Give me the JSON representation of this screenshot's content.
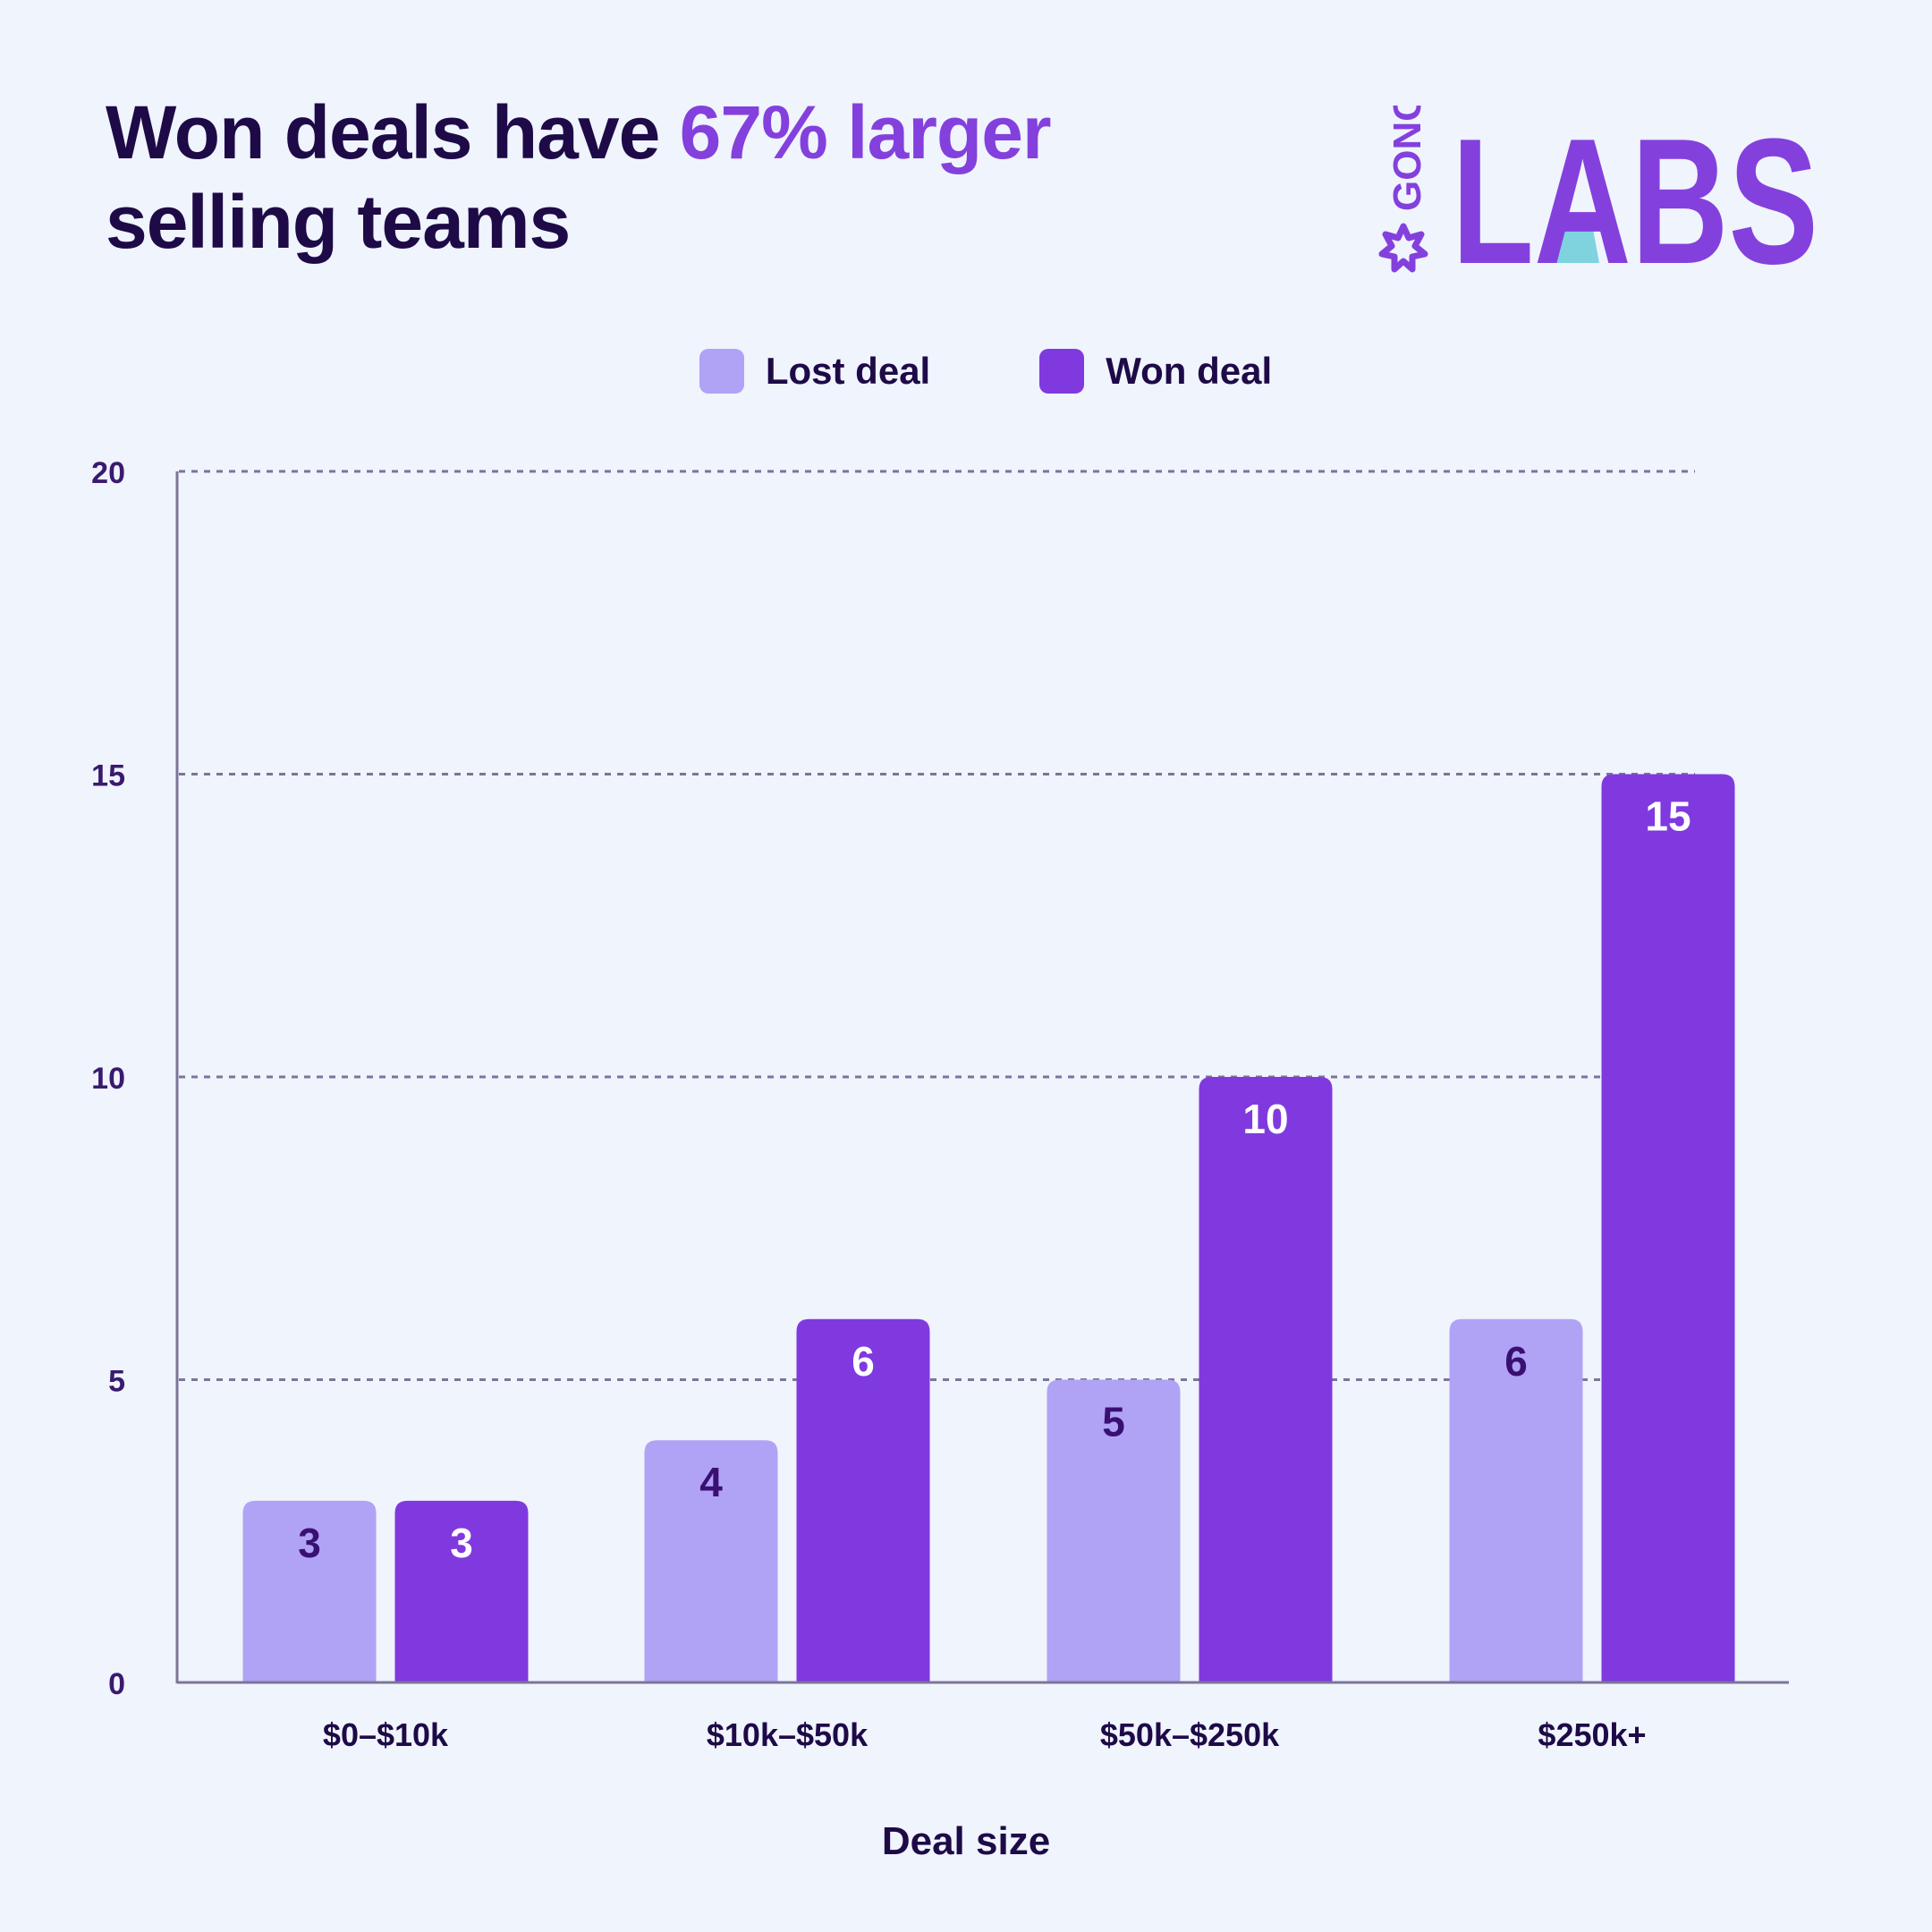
{
  "title": {
    "before": "Won deals have ",
    "highlight": "67% larger",
    "after": " selling teams"
  },
  "logo": {
    "small_text": "GONG",
    "big_text": "LABS"
  },
  "colors": {
    "background": "#eff4fd",
    "lost": "#b0a3f5",
    "won": "#8039df",
    "dark_text": "#1e0a47",
    "accent": "#8440dd"
  },
  "chart_data": {
    "type": "bar",
    "categories": [
      "$0–$10k",
      "$10k–$50k",
      "$50k–$250k",
      "$250k+"
    ],
    "series": [
      {
        "name": "Lost deal",
        "values": [
          3,
          4,
          5,
          6
        ]
      },
      {
        "name": "Won deal",
        "values": [
          3,
          6,
          10,
          15
        ]
      }
    ],
    "xlabel": "Deal size",
    "ylabel": "",
    "ylim": [
      0,
      20
    ],
    "yticks": [
      0,
      5,
      10,
      15,
      20
    ],
    "grid": true,
    "legend_position": "top-center"
  }
}
